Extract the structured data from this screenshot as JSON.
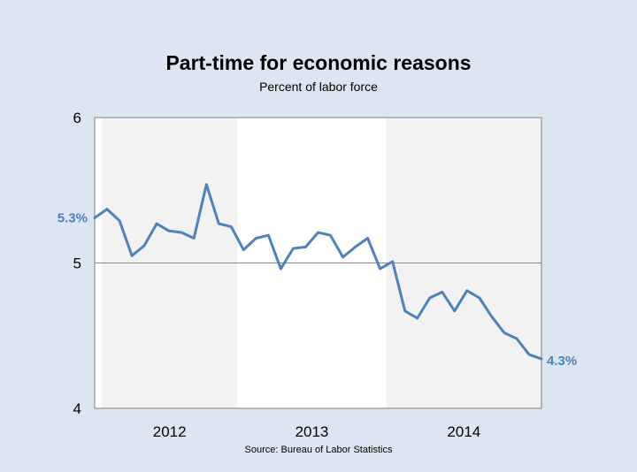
{
  "chart_data": {
    "type": "line",
    "title": "Part-time for economic reasons",
    "subtitle": "Percent of labor force",
    "source": "Source:  Bureau  of Labor Statistics",
    "ylim": [
      4,
      6
    ],
    "yticks": [
      {
        "value": 4,
        "label": "4"
      },
      {
        "value": 5,
        "label": "5"
      },
      {
        "value": 6,
        "label": "6"
      }
    ],
    "year_labels": [
      "2012",
      "2013",
      "2014"
    ],
    "shaded_years": [
      "2012",
      "2014"
    ],
    "series_color": "#4f81bd",
    "start_label": "5.3%",
    "end_label": "4.3%",
    "series": [
      {
        "values": [
          5.31,
          5.37,
          5.29,
          5.05,
          5.12,
          5.27,
          5.22,
          5.21,
          5.17,
          5.54,
          5.27,
          5.25,
          5.09,
          5.17,
          5.19,
          4.96,
          5.1,
          5.11,
          5.21,
          5.19,
          5.04,
          5.11,
          5.17,
          4.96,
          5.01,
          4.67,
          4.62,
          4.76,
          4.8,
          4.67,
          4.81,
          4.76,
          4.63,
          4.52,
          4.48,
          4.37,
          4.34
        ]
      }
    ]
  }
}
